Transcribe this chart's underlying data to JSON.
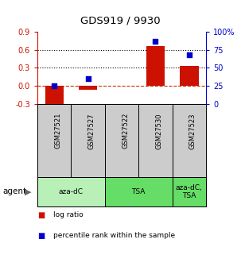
{
  "title": "GDS919 / 9930",
  "samples": [
    "GSM27521",
    "GSM27527",
    "GSM27522",
    "GSM27530",
    "GSM27523"
  ],
  "log_ratios": [
    -0.32,
    -0.06,
    0.0,
    0.66,
    0.33
  ],
  "percentile_ranks": [
    25.0,
    35.0,
    null,
    87.0,
    68.0
  ],
  "ylim_left": [
    -0.3,
    0.9
  ],
  "ylim_right": [
    0,
    100
  ],
  "yticks_left": [
    -0.3,
    0.0,
    0.3,
    0.6,
    0.9
  ],
  "yticks_right": [
    0,
    25,
    50,
    75,
    100
  ],
  "yticklabels_right": [
    "0",
    "25",
    "50",
    "75",
    "100%"
  ],
  "hlines": [
    0.0,
    0.3,
    0.6
  ],
  "agent_groups": [
    {
      "label": "aza-dC",
      "start": 0,
      "end": 2,
      "color": "#b8f0b8"
    },
    {
      "label": "TSA",
      "start": 2,
      "end": 4,
      "color": "#66dd66"
    },
    {
      "label": "aza-dC,\nTSA",
      "start": 4,
      "end": 5,
      "color": "#66dd66"
    }
  ],
  "bar_color": "#cc1100",
  "dot_color": "#0000cc",
  "bar_width": 0.55,
  "background_color": "#ffffff",
  "plot_bg_color": "#ffffff",
  "sample_bg_color": "#cccccc",
  "label_color_left": "#cc1100",
  "label_color_right": "#0000cc",
  "agent_label": "agent",
  "legend_items": [
    {
      "color": "#cc1100",
      "label": "log ratio"
    },
    {
      "color": "#0000cc",
      "label": "percentile rank within the sample"
    }
  ]
}
